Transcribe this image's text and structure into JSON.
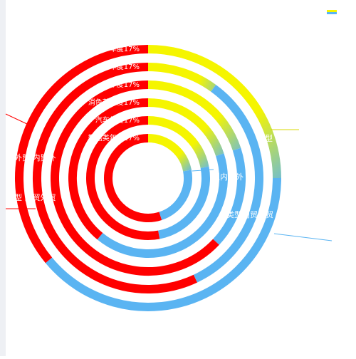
{
  "chart_data": {
    "type": "concentric-ring",
    "colors": [
      "#f5f500",
      "#5ab4f2",
      "#ff0000"
    ],
    "rings": [
      {
        "label": "年度17%",
        "values": [
          25,
          39,
          36
        ]
      },
      {
        "label": "年度17%",
        "values": [
          10,
          33,
          57
        ]
      },
      {
        "label": "年度17%",
        "values": [
          20,
          17,
          63
        ]
      },
      {
        "label": "消色花年度17%",
        "values": [
          20,
          41,
          39
        ]
      },
      {
        "label": "汽车年度17%",
        "values": [
          22,
          25,
          53
        ]
      },
      {
        "label": "数据类年度17%",
        "values": [
          22,
          23,
          55
        ]
      }
    ],
    "annotations": [
      "外贸 内贸外",
      "型  内贸外贸",
      "型",
      "型内贸外",
      "类型内贸外贸"
    ]
  }
}
